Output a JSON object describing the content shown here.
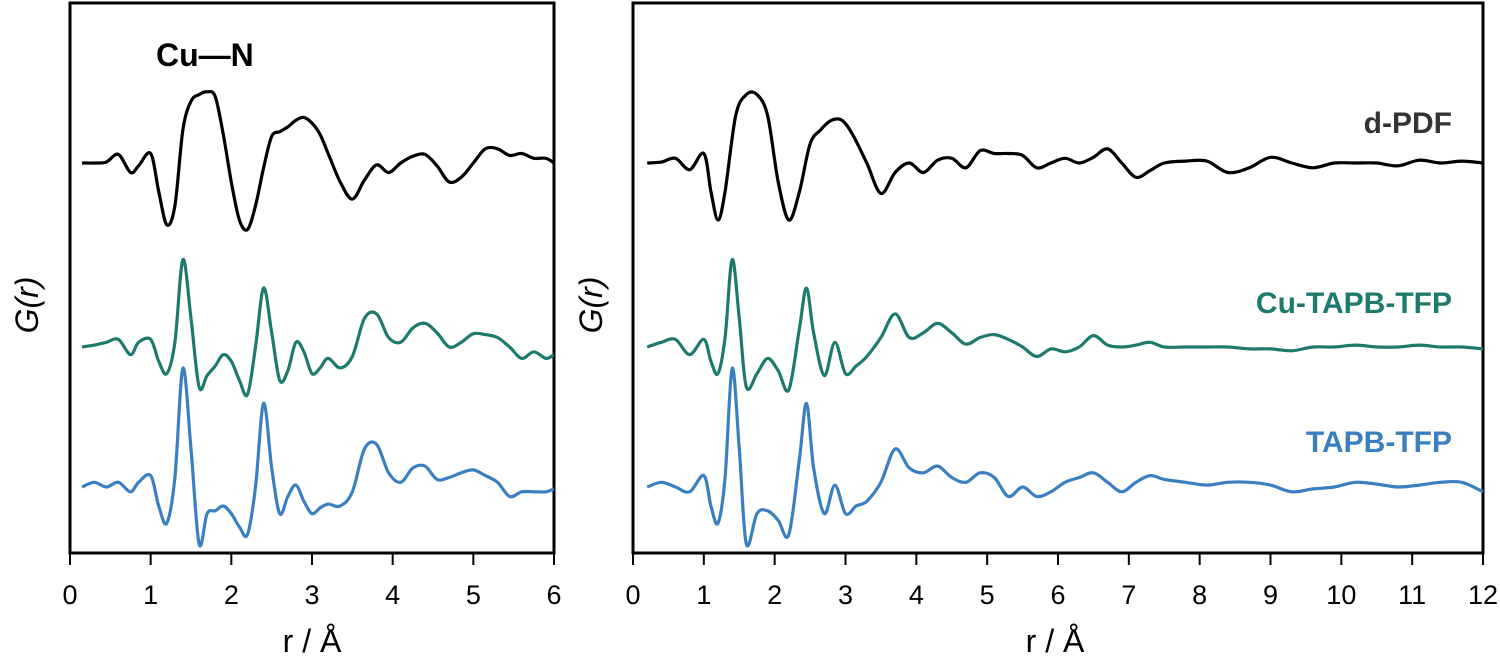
{
  "chart_data": [
    {
      "type": "line",
      "panel": "left",
      "xlabel": "r / Å",
      "ylabel": "G(r)",
      "xlim": [
        0,
        6
      ],
      "x_ticks": [
        "0",
        "1",
        "2",
        "3",
        "4",
        "5",
        "6"
      ],
      "y_ticks": [],
      "annotation": "Cu—N",
      "grid": false,
      "series": [
        {
          "name": "d-PDF",
          "color": "#000000",
          "x": [
            0.15,
            0.3,
            0.45,
            0.6,
            0.75,
            0.85,
            1.0,
            1.1,
            1.2,
            1.3,
            1.4,
            1.5,
            1.6,
            1.7,
            1.8,
            1.9,
            2.0,
            2.1,
            2.2,
            2.3,
            2.4,
            2.5,
            2.6,
            2.7,
            2.8,
            2.9,
            3.0,
            3.1,
            3.2,
            3.35,
            3.5,
            3.65,
            3.8,
            3.95,
            4.1,
            4.25,
            4.4,
            4.55,
            4.7,
            4.85,
            5.0,
            5.15,
            5.3,
            5.45,
            5.6,
            5.75,
            5.9,
            6.0
          ],
          "y": [
            0.0,
            0.0,
            0.01,
            0.09,
            -0.1,
            -0.03,
            0.1,
            -0.3,
            -0.65,
            -0.45,
            0.35,
            0.65,
            0.72,
            0.75,
            0.7,
            0.3,
            -0.2,
            -0.6,
            -0.7,
            -0.45,
            -0.05,
            0.28,
            0.33,
            0.38,
            0.45,
            0.48,
            0.42,
            0.3,
            0.1,
            -0.2,
            -0.38,
            -0.18,
            -0.02,
            -0.1,
            0.0,
            0.07,
            0.09,
            -0.03,
            -0.2,
            -0.15,
            0.0,
            0.15,
            0.15,
            0.08,
            0.1,
            0.05,
            0.05,
            0.0
          ]
        },
        {
          "name": "Cu-TAPB-TFP",
          "color": "#1f7a6e",
          "x": [
            0.15,
            0.3,
            0.45,
            0.6,
            0.75,
            0.85,
            1.0,
            1.1,
            1.2,
            1.3,
            1.4,
            1.5,
            1.6,
            1.7,
            1.8,
            1.9,
            2.0,
            2.1,
            2.2,
            2.3,
            2.4,
            2.5,
            2.6,
            2.7,
            2.8,
            2.9,
            3.0,
            3.1,
            3.2,
            3.35,
            3.5,
            3.65,
            3.8,
            3.95,
            4.1,
            4.25,
            4.4,
            4.55,
            4.7,
            4.85,
            5.0,
            5.15,
            5.3,
            5.45,
            5.6,
            5.75,
            5.9,
            6.0
          ],
          "y": [
            0.0,
            0.02,
            0.05,
            0.08,
            -0.08,
            0.05,
            0.08,
            -0.15,
            -0.28,
            0.05,
            0.92,
            0.3,
            -0.42,
            -0.3,
            -0.2,
            -0.08,
            -0.15,
            -0.35,
            -0.5,
            0.0,
            0.62,
            0.15,
            -0.35,
            -0.25,
            0.05,
            -0.05,
            -0.28,
            -0.22,
            -0.12,
            -0.22,
            -0.1,
            0.3,
            0.35,
            0.1,
            0.05,
            0.2,
            0.25,
            0.15,
            0.0,
            0.05,
            0.14,
            0.13,
            0.1,
            0.0,
            -0.12,
            -0.05,
            -0.12,
            -0.08
          ]
        },
        {
          "name": "TAPB-TFP",
          "color": "#3a7fc1",
          "x": [
            0.15,
            0.3,
            0.45,
            0.6,
            0.75,
            0.85,
            1.0,
            1.1,
            1.2,
            1.3,
            1.4,
            1.5,
            1.6,
            1.7,
            1.8,
            1.9,
            2.0,
            2.1,
            2.2,
            2.3,
            2.4,
            2.5,
            2.6,
            2.7,
            2.8,
            2.9,
            3.0,
            3.1,
            3.2,
            3.35,
            3.5,
            3.65,
            3.8,
            3.95,
            4.1,
            4.25,
            4.4,
            4.55,
            4.7,
            4.85,
            5.0,
            5.15,
            5.3,
            5.45,
            5.6,
            5.75,
            5.9,
            6.0
          ],
          "y": [
            0.0,
            0.05,
            0.0,
            0.05,
            -0.05,
            0.05,
            0.12,
            -0.2,
            -0.38,
            0.1,
            1.25,
            0.4,
            -0.6,
            -0.28,
            -0.25,
            -0.2,
            -0.28,
            -0.42,
            -0.5,
            0.0,
            0.88,
            0.2,
            -0.28,
            -0.1,
            0.02,
            -0.15,
            -0.28,
            -0.22,
            -0.18,
            -0.2,
            -0.05,
            0.4,
            0.45,
            0.15,
            0.05,
            0.2,
            0.22,
            0.08,
            0.1,
            0.15,
            0.18,
            0.12,
            0.05,
            -0.1,
            -0.05,
            -0.05,
            -0.05,
            -0.02
          ]
        }
      ]
    },
    {
      "type": "line",
      "panel": "right",
      "xlabel": "r / Å",
      "ylabel": "G(r)",
      "xlim": [
        0,
        12
      ],
      "x_ticks": [
        "0",
        "1",
        "2",
        "3",
        "4",
        "5",
        "6",
        "7",
        "8",
        "9",
        "10",
        "11",
        "12"
      ],
      "y_ticks": [],
      "grid": false,
      "series": [
        {
          "name": "d-PDF",
          "color": "#000000",
          "x": [
            0.2,
            0.4,
            0.6,
            0.8,
            1.0,
            1.1,
            1.2,
            1.3,
            1.45,
            1.6,
            1.75,
            1.9,
            2.05,
            2.2,
            2.35,
            2.5,
            2.65,
            2.8,
            2.95,
            3.1,
            3.3,
            3.5,
            3.7,
            3.9,
            4.1,
            4.3,
            4.5,
            4.7,
            4.9,
            5.1,
            5.3,
            5.5,
            5.7,
            5.9,
            6.1,
            6.3,
            6.5,
            6.7,
            6.9,
            7.1,
            7.3,
            7.5,
            7.8,
            8.1,
            8.4,
            8.7,
            9.0,
            9.3,
            9.6,
            9.9,
            10.2,
            10.5,
            10.8,
            11.1,
            11.4,
            11.7,
            12.0
          ],
          "y": [
            0.0,
            0.01,
            0.05,
            -0.07,
            0.1,
            -0.3,
            -0.6,
            -0.3,
            0.5,
            0.72,
            0.72,
            0.5,
            -0.2,
            -0.6,
            -0.3,
            0.2,
            0.35,
            0.45,
            0.45,
            0.3,
            0.0,
            -0.32,
            -0.1,
            0.0,
            -0.1,
            0.03,
            0.05,
            -0.05,
            0.13,
            0.1,
            0.1,
            0.08,
            -0.05,
            0.0,
            0.05,
            0.0,
            0.06,
            0.15,
            0.0,
            -0.15,
            -0.08,
            0.0,
            0.02,
            0.02,
            -0.1,
            -0.05,
            0.06,
            0.0,
            -0.05,
            0.0,
            0.0,
            0.0,
            -0.03,
            0.03,
            0.0,
            0.02,
            0.0
          ]
        },
        {
          "name": "Cu-TAPB-TFP",
          "color": "#1f7a6e",
          "x": [
            0.2,
            0.4,
            0.6,
            0.8,
            1.0,
            1.1,
            1.2,
            1.3,
            1.4,
            1.5,
            1.6,
            1.75,
            1.9,
            2.05,
            2.2,
            2.35,
            2.45,
            2.55,
            2.7,
            2.85,
            3.0,
            3.15,
            3.3,
            3.5,
            3.7,
            3.9,
            4.1,
            4.3,
            4.5,
            4.7,
            4.9,
            5.1,
            5.3,
            5.5,
            5.7,
            5.9,
            6.1,
            6.3,
            6.5,
            6.7,
            6.9,
            7.1,
            7.3,
            7.5,
            7.8,
            8.1,
            8.4,
            8.7,
            9.0,
            9.3,
            9.6,
            9.9,
            10.2,
            10.5,
            10.8,
            11.1,
            11.4,
            11.7,
            12.0
          ],
          "y": [
            0.0,
            0.05,
            0.08,
            -0.08,
            0.08,
            -0.15,
            -0.28,
            0.1,
            0.92,
            0.3,
            -0.42,
            -0.28,
            -0.12,
            -0.25,
            -0.45,
            0.2,
            0.62,
            0.15,
            -0.3,
            0.05,
            -0.28,
            -0.2,
            -0.1,
            0.1,
            0.35,
            0.1,
            0.15,
            0.25,
            0.15,
            0.03,
            0.1,
            0.13,
            0.08,
            0.0,
            -0.1,
            -0.02,
            -0.05,
            0.0,
            0.12,
            0.02,
            0.0,
            0.02,
            0.05,
            0.0,
            0.0,
            0.0,
            0.0,
            -0.02,
            -0.02,
            -0.04,
            0.0,
            0.0,
            0.02,
            0.0,
            0.0,
            0.02,
            0.0,
            0.0,
            -0.02
          ]
        },
        {
          "name": "TAPB-TFP",
          "color": "#3a7fc1",
          "x": [
            0.2,
            0.4,
            0.6,
            0.8,
            1.0,
            1.1,
            1.2,
            1.3,
            1.4,
            1.5,
            1.6,
            1.75,
            1.9,
            2.05,
            2.2,
            2.35,
            2.45,
            2.55,
            2.7,
            2.85,
            3.0,
            3.15,
            3.3,
            3.5,
            3.7,
            3.9,
            4.1,
            4.3,
            4.5,
            4.7,
            4.9,
            5.1,
            5.3,
            5.5,
            5.7,
            5.9,
            6.1,
            6.3,
            6.5,
            6.7,
            6.9,
            7.1,
            7.3,
            7.5,
            7.8,
            8.1,
            8.4,
            8.7,
            9.0,
            9.3,
            9.6,
            9.9,
            10.2,
            10.5,
            10.8,
            11.1,
            11.4,
            11.7,
            12.0
          ],
          "y": [
            0.0,
            0.05,
            0.0,
            -0.05,
            0.12,
            -0.2,
            -0.38,
            0.1,
            1.25,
            0.4,
            -0.6,
            -0.28,
            -0.25,
            -0.35,
            -0.5,
            0.3,
            0.88,
            0.2,
            -0.28,
            0.02,
            -0.28,
            -0.2,
            -0.15,
            0.05,
            0.4,
            0.2,
            0.15,
            0.22,
            0.1,
            0.05,
            0.15,
            0.1,
            -0.1,
            0.0,
            -0.1,
            -0.05,
            0.05,
            0.1,
            0.15,
            0.05,
            -0.05,
            0.05,
            0.12,
            0.08,
            0.05,
            0.02,
            0.05,
            0.05,
            0.02,
            -0.05,
            -0.02,
            0.0,
            0.05,
            0.03,
            0.0,
            0.02,
            0.05,
            0.05,
            -0.05
          ]
        }
      ]
    }
  ]
}
